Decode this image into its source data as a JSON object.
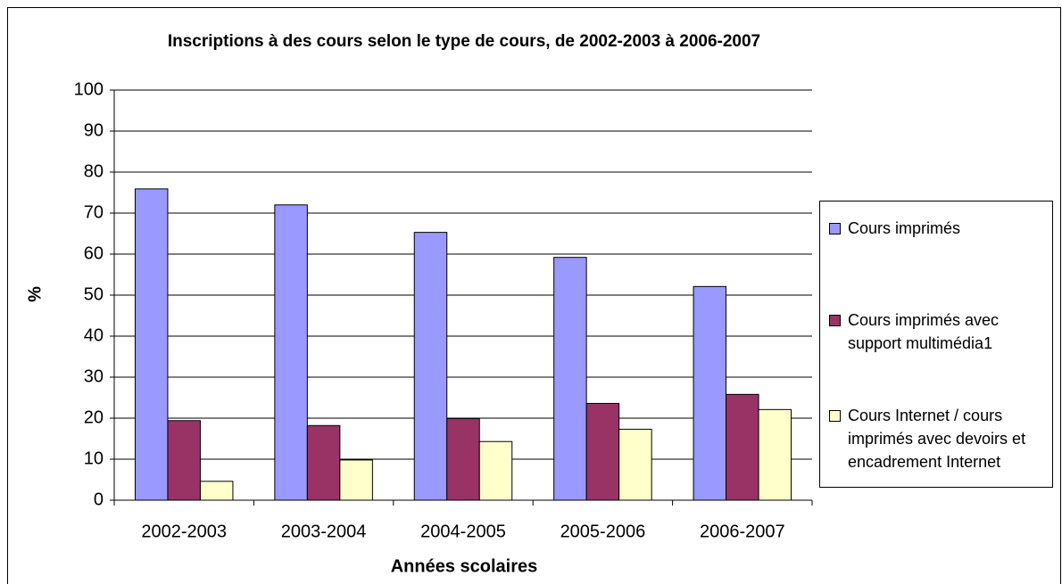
{
  "chart_data": {
    "type": "bar",
    "title": "Inscriptions à des cours selon le type de cours, de 2002-2003 à 2006-2007",
    "x_label": "Années scolaires",
    "y_label": "%",
    "categories": [
      "2002-2003",
      "2003-2004",
      "2004-2005",
      "2005-2006",
      "2006-2007"
    ],
    "series": [
      {
        "name": "Cours imprimés",
        "color": "#9999ff",
        "values": [
          75.9,
          72,
          65.3,
          59.2,
          52.1
        ]
      },
      {
        "name": "Cours imprimés avec support multimédia1",
        "color": "#993366",
        "values": [
          19.4,
          18.2,
          19.9,
          23.6,
          25.8
        ]
      },
      {
        "name": "Cours Internet / cours imprimés avec devoirs et encadrement Internet",
        "color": "#ffffcc",
        "values": [
          4.6,
          9.8,
          14.3,
          17.3,
          22.1
        ]
      }
    ],
    "ylim": [
      0,
      100
    ],
    "yticks": [
      0,
      10,
      20,
      30,
      40,
      50,
      60,
      70,
      80,
      90,
      100
    ],
    "grid": true,
    "legend": "right"
  }
}
